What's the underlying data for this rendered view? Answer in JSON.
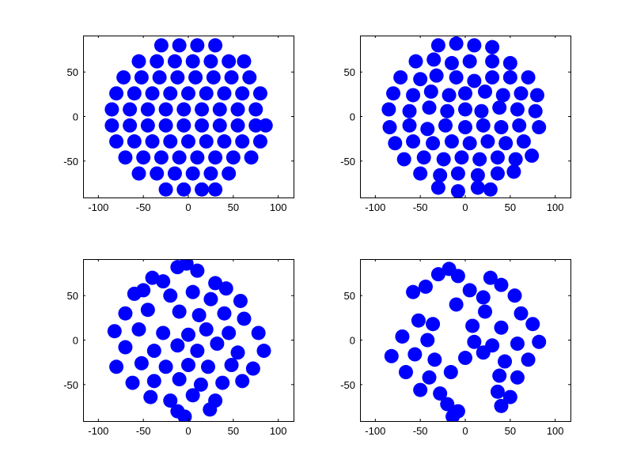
{
  "chart_data": [
    {
      "type": "scatter",
      "xlim": [
        -117,
        117
      ],
      "ylim": [
        -91,
        91
      ],
      "xticks": [
        -100,
        -50,
        0,
        50,
        100
      ],
      "yticks": [
        -50,
        0,
        50
      ],
      "marker_color": "#0000ff",
      "grid": false,
      "points": [
        [
          -30,
          80
        ],
        [
          -10,
          80
        ],
        [
          10,
          80
        ],
        [
          30,
          80
        ],
        [
          -55,
          62
        ],
        [
          -35,
          62
        ],
        [
          -15,
          62
        ],
        [
          5,
          62
        ],
        [
          25,
          62
        ],
        [
          45,
          62
        ],
        [
          62,
          62
        ],
        [
          -72,
          44
        ],
        [
          -52,
          44
        ],
        [
          -32,
          44
        ],
        [
          -12,
          44
        ],
        [
          8,
          44
        ],
        [
          28,
          44
        ],
        [
          48,
          44
        ],
        [
          68,
          44
        ],
        [
          -80,
          26
        ],
        [
          -60,
          26
        ],
        [
          -40,
          26
        ],
        [
          -20,
          26
        ],
        [
          0,
          26
        ],
        [
          20,
          26
        ],
        [
          40,
          26
        ],
        [
          60,
          26
        ],
        [
          80,
          26
        ],
        [
          -85,
          8
        ],
        [
          -65,
          8
        ],
        [
          -45,
          8
        ],
        [
          -25,
          8
        ],
        [
          -5,
          8
        ],
        [
          15,
          8
        ],
        [
          35,
          8
        ],
        [
          55,
          8
        ],
        [
          75,
          8
        ],
        [
          -85,
          -10
        ],
        [
          -65,
          -10
        ],
        [
          -45,
          -10
        ],
        [
          -25,
          -10
        ],
        [
          -5,
          -10
        ],
        [
          15,
          -10
        ],
        [
          35,
          -10
        ],
        [
          55,
          -10
        ],
        [
          75,
          -10
        ],
        [
          86,
          -10
        ],
        [
          -80,
          -28
        ],
        [
          -60,
          -28
        ],
        [
          -40,
          -28
        ],
        [
          -20,
          -28
        ],
        [
          0,
          -28
        ],
        [
          20,
          -28
        ],
        [
          40,
          -28
        ],
        [
          60,
          -28
        ],
        [
          80,
          -28
        ],
        [
          -70,
          -46
        ],
        [
          -50,
          -46
        ],
        [
          -30,
          -46
        ],
        [
          -10,
          -46
        ],
        [
          10,
          -46
        ],
        [
          30,
          -46
        ],
        [
          50,
          -46
        ],
        [
          70,
          -46
        ],
        [
          -55,
          -64
        ],
        [
          -35,
          -64
        ],
        [
          -15,
          -64
        ],
        [
          5,
          -64
        ],
        [
          25,
          -64
        ],
        [
          45,
          -64
        ],
        [
          -25,
          -82
        ],
        [
          -5,
          -82
        ],
        [
          15,
          -82
        ],
        [
          30,
          -82
        ]
      ]
    },
    {
      "type": "scatter",
      "xlim": [
        -117,
        117
      ],
      "ylim": [
        -91,
        91
      ],
      "xticks": [
        -100,
        -50,
        0,
        50,
        100
      ],
      "yticks": [
        -50,
        0,
        50
      ],
      "marker_color": "#0000ff",
      "grid": false,
      "points": [
        [
          -30,
          80
        ],
        [
          -10,
          82
        ],
        [
          10,
          80
        ],
        [
          30,
          78
        ],
        [
          -55,
          62
        ],
        [
          -35,
          64
        ],
        [
          -15,
          60
        ],
        [
          5,
          62
        ],
        [
          30,
          62
        ],
        [
          50,
          60
        ],
        [
          -72,
          44
        ],
        [
          -50,
          42
        ],
        [
          -32,
          46
        ],
        [
          -10,
          44
        ],
        [
          10,
          40
        ],
        [
          30,
          44
        ],
        [
          50,
          44
        ],
        [
          70,
          44
        ],
        [
          -80,
          26
        ],
        [
          -58,
          24
        ],
        [
          -38,
          28
        ],
        [
          -18,
          24
        ],
        [
          0,
          26
        ],
        [
          22,
          28
        ],
        [
          42,
          24
        ],
        [
          62,
          26
        ],
        [
          80,
          24
        ],
        [
          -85,
          8
        ],
        [
          -62,
          6
        ],
        [
          -40,
          10
        ],
        [
          -20,
          6
        ],
        [
          0,
          8
        ],
        [
          18,
          6
        ],
        [
          38,
          10
        ],
        [
          58,
          8
        ],
        [
          78,
          6
        ],
        [
          -84,
          -12
        ],
        [
          -62,
          -10
        ],
        [
          -42,
          -14
        ],
        [
          -22,
          -10
        ],
        [
          0,
          -12
        ],
        [
          20,
          -10
        ],
        [
          40,
          -12
        ],
        [
          60,
          -10
        ],
        [
          82,
          -12
        ],
        [
          -78,
          -30
        ],
        [
          -58,
          -28
        ],
        [
          -36,
          -30
        ],
        [
          -15,
          -28
        ],
        [
          5,
          -30
        ],
        [
          25,
          -28
        ],
        [
          45,
          -30
        ],
        [
          65,
          -28
        ],
        [
          -68,
          -48
        ],
        [
          -46,
          -46
        ],
        [
          -24,
          -48
        ],
        [
          -4,
          -46
        ],
        [
          16,
          -48
        ],
        [
          36,
          -46
        ],
        [
          56,
          -48
        ],
        [
          74,
          -44
        ],
        [
          -50,
          -64
        ],
        [
          -28,
          -66
        ],
        [
          -8,
          -64
        ],
        [
          14,
          -66
        ],
        [
          36,
          -64
        ],
        [
          54,
          -62
        ],
        [
          -30,
          -80
        ],
        [
          -8,
          -84
        ],
        [
          14,
          -80
        ],
        [
          28,
          -82
        ]
      ]
    },
    {
      "type": "scatter",
      "xlim": [
        -117,
        117
      ],
      "ylim": [
        -91,
        91
      ],
      "xticks": [
        -100,
        -50,
        0,
        50,
        100
      ],
      "yticks": [
        -50,
        0,
        50
      ],
      "marker_color": "#0000ff",
      "grid": false,
      "points": [
        [
          -12,
          82
        ],
        [
          -2,
          86
        ],
        [
          10,
          78
        ],
        [
          -40,
          70
        ],
        [
          -28,
          66
        ],
        [
          30,
          64
        ],
        [
          42,
          58
        ],
        [
          -60,
          52
        ],
        [
          -50,
          56
        ],
        [
          -20,
          50
        ],
        [
          5,
          54
        ],
        [
          25,
          46
        ],
        [
          58,
          44
        ],
        [
          -70,
          30
        ],
        [
          -45,
          34
        ],
        [
          -10,
          32
        ],
        [
          12,
          28
        ],
        [
          40,
          30
        ],
        [
          62,
          24
        ],
        [
          -82,
          10
        ],
        [
          -55,
          12
        ],
        [
          -28,
          8
        ],
        [
          0,
          6
        ],
        [
          20,
          12
        ],
        [
          45,
          8
        ],
        [
          78,
          8
        ],
        [
          -70,
          -8
        ],
        [
          -38,
          -12
        ],
        [
          -12,
          -6
        ],
        [
          10,
          -12
        ],
        [
          32,
          -4
        ],
        [
          55,
          -14
        ],
        [
          84,
          -12
        ],
        [
          -80,
          -30
        ],
        [
          -52,
          -26
        ],
        [
          -25,
          -30
        ],
        [
          0,
          -28
        ],
        [
          22,
          -30
        ],
        [
          48,
          -28
        ],
        [
          72,
          -32
        ],
        [
          -62,
          -48
        ],
        [
          -38,
          -46
        ],
        [
          -10,
          -44
        ],
        [
          14,
          -50
        ],
        [
          38,
          -48
        ],
        [
          60,
          -46
        ],
        [
          -42,
          -64
        ],
        [
          -20,
          -68
        ],
        [
          5,
          -62
        ],
        [
          30,
          -68
        ],
        [
          -12,
          -80
        ],
        [
          -4,
          -86
        ],
        [
          24,
          -78
        ]
      ]
    },
    {
      "type": "scatter",
      "xlim": [
        -117,
        117
      ],
      "ylim": [
        -91,
        91
      ],
      "xticks": [
        -100,
        -50,
        0,
        50,
        100
      ],
      "yticks": [
        -50,
        0,
        50
      ],
      "marker_color": "#0000ff",
      "grid": false,
      "points": [
        [
          -30,
          74
        ],
        [
          -18,
          80
        ],
        [
          -8,
          72
        ],
        [
          28,
          70
        ],
        [
          40,
          62
        ],
        [
          -58,
          54
        ],
        [
          -44,
          60
        ],
        [
          5,
          56
        ],
        [
          20,
          48
        ],
        [
          55,
          50
        ],
        [
          -10,
          40
        ],
        [
          22,
          32
        ],
        [
          62,
          30
        ],
        [
          -52,
          22
        ],
        [
          -36,
          18
        ],
        [
          8,
          16
        ],
        [
          40,
          14
        ],
        [
          75,
          18
        ],
        [
          -70,
          4
        ],
        [
          -42,
          0
        ],
        [
          10,
          -2
        ],
        [
          30,
          -6
        ],
        [
          58,
          -4
        ],
        [
          82,
          -2
        ],
        [
          -82,
          -18
        ],
        [
          -56,
          -16
        ],
        [
          -34,
          -22
        ],
        [
          0,
          -20
        ],
        [
          20,
          -14
        ],
        [
          44,
          -24
        ],
        [
          70,
          -22
        ],
        [
          -66,
          -36
        ],
        [
          -40,
          -42
        ],
        [
          -16,
          -36
        ],
        [
          38,
          -40
        ],
        [
          58,
          -42
        ],
        [
          -50,
          -56
        ],
        [
          -28,
          -60
        ],
        [
          36,
          -58
        ],
        [
          50,
          -64
        ],
        [
          -20,
          -72
        ],
        [
          -8,
          -80
        ],
        [
          -14,
          -86
        ],
        [
          40,
          -74
        ]
      ]
    }
  ]
}
